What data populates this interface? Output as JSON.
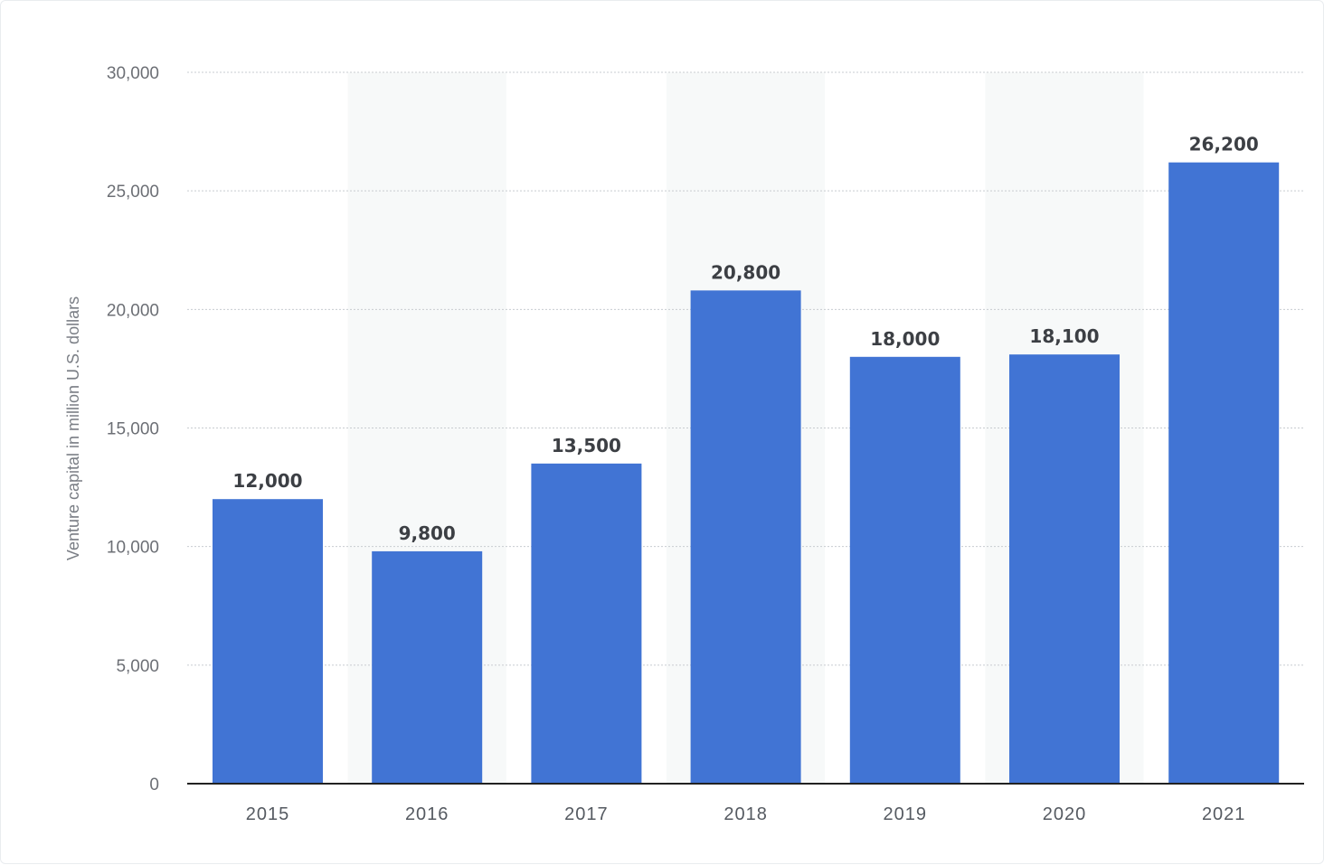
{
  "chart_data": {
    "type": "bar",
    "title": "",
    "xlabel": "",
    "ylabel": "Venture capital in million U.S. dollars",
    "categories": [
      "2015",
      "2016",
      "2017",
      "2018",
      "2019",
      "2020",
      "2021"
    ],
    "values": [
      12000,
      9800,
      13500,
      20800,
      18000,
      18100,
      26200
    ],
    "value_labels": [
      "12,000",
      "9,800",
      "13,500",
      "20,800",
      "18,000",
      "18,100",
      "26,200"
    ],
    "ylim": [
      0,
      30000
    ],
    "y_ticks": [
      0,
      5000,
      10000,
      15000,
      20000,
      25000,
      30000
    ],
    "y_tick_labels": [
      "0",
      "5,000",
      "10,000",
      "15,000",
      "20,000",
      "25,000",
      "30,000"
    ],
    "grid": true,
    "legend": "none",
    "colors": {
      "bar": "#4174d4",
      "alt_band": "#f7f9f9",
      "gridline": "#c8ccd0",
      "axis": "#222222"
    }
  }
}
